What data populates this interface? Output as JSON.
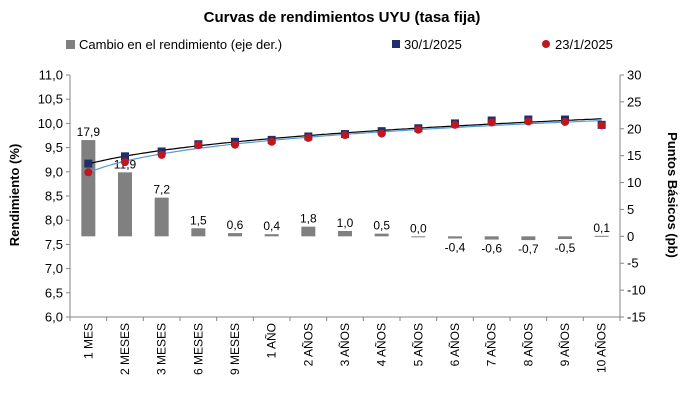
{
  "chart_data": {
    "type": "bar+line",
    "title": "Curvas de rendimientos UYU (tasa fija)",
    "categories": [
      "1 MES",
      "2 MESES",
      "3 MESES",
      "6 MESES",
      "9 MESES",
      "1 AÑO",
      "2 AÑOS",
      "3 AÑOS",
      "4 AÑOS",
      "5 AÑOS",
      "6 AÑOS",
      "7 AÑOS",
      "8 AÑOS",
      "9 AÑOS",
      "10 AÑOS"
    ],
    "series": [
      {
        "name": "Cambio en el rendimiento (eje der.)",
        "type": "bar",
        "axis": "right",
        "color": "#808080",
        "values": [
          17.9,
          11.9,
          7.2,
          1.5,
          0.6,
          0.4,
          1.8,
          1.0,
          0.5,
          0.0,
          -0.4,
          -0.6,
          -0.7,
          -0.5,
          0.1
        ],
        "labels": [
          "17,9",
          "11,9",
          "7,2",
          "1,5",
          "0,6",
          "0,4",
          "1,8",
          "1,0",
          "0,5",
          "0,0",
          "-0,4",
          "-0,6",
          "-0,7",
          "-0,5",
          "0,1"
        ]
      },
      {
        "name": "30/1/2025",
        "type": "scatter",
        "axis": "left",
        "color": "#1f2f6b",
        "marker": "square",
        "trend_color": "#000000",
        "values": [
          9.17,
          9.32,
          9.42,
          9.57,
          9.62,
          9.66,
          9.73,
          9.78,
          9.84,
          9.9,
          10.0,
          10.06,
          10.08,
          10.08,
          9.97
        ]
      },
      {
        "name": "23/1/2025",
        "type": "scatter",
        "axis": "left",
        "color": "#c0161d",
        "marker": "circle",
        "trend_color": "#5b9bd5",
        "values": [
          8.99,
          9.2,
          9.35,
          9.55,
          9.56,
          9.62,
          9.7,
          9.76,
          9.79,
          9.87,
          9.97,
          10.02,
          10.04,
          10.03,
          9.96
        ]
      }
    ],
    "y_left": {
      "label": "Rendimiento (%)",
      "min": 6.0,
      "max": 11.0,
      "step": 0.5,
      "tick_labels": [
        "6,0",
        "6,5",
        "7,0",
        "7,5",
        "8,0",
        "8,5",
        "9,0",
        "9,5",
        "10,0",
        "10,5",
        "11,0"
      ]
    },
    "y_right": {
      "label": "Puntos Básicos (pb)",
      "min": -15,
      "max": 30,
      "step": 5,
      "tick_labels": [
        "-15",
        "-10",
        "-5",
        "0",
        "5",
        "10",
        "15",
        "20",
        "25",
        "30"
      ]
    },
    "legend": {
      "position": "top",
      "entries": [
        "Cambio en el rendimiento (eje der.)",
        "30/1/2025",
        "23/1/2025"
      ]
    },
    "grid": false
  }
}
